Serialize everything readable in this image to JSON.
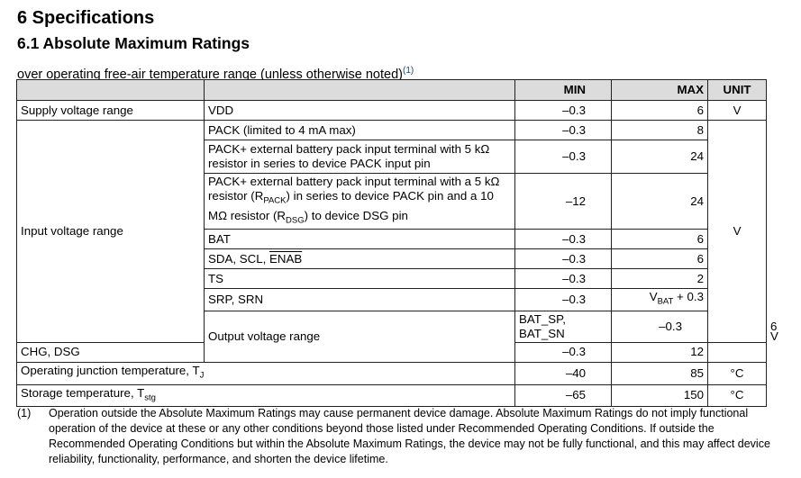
{
  "heading": "6 Specifications",
  "subheading": "6.1 Absolute Maximum Ratings",
  "condition": "over operating free-air temperature range (unless otherwise noted)",
  "condition_ref": "(1)",
  "columns": {
    "min": "MIN",
    "max": "MAX",
    "unit": "UNIT"
  },
  "rows": {
    "supply": {
      "param": "Supply voltage range",
      "pin": "VDD",
      "min": "–0.3",
      "max": "6",
      "unit": "V"
    },
    "input": {
      "param": "Input voltage range",
      "unit": "V",
      "pack": {
        "pin": "PACK (limited to 4 mA max)",
        "min": "–0.3",
        "max": "8"
      },
      "pack5k": {
        "pin": "PACK+ external battery pack input terminal with 5 kΩ resistor in series to device PACK input pin",
        "min": "–0.3",
        "max": "24"
      },
      "pack10m": {
        "pin_a": "PACK+ external battery pack input terminal with a 5 kΩ resistor (R",
        "pin_sub1": "PACK",
        "pin_b": ") in series to device PACK pin and a 10 MΩ resistor (R",
        "pin_sub2": "DSG",
        "pin_c": ") to device DSG pin",
        "min": "–12",
        "max": "24"
      },
      "bat": {
        "pin": "BAT",
        "min": "–0.3",
        "max": "6"
      },
      "sda": {
        "pin_a": "SDA, SCL, ",
        "pin_b": "ENAB",
        "min": "–0.3",
        "max": "6"
      },
      "ts": {
        "pin": "TS",
        "min": "–0.3",
        "max": "2"
      },
      "srp": {
        "pin": "SRP, SRN",
        "min": "–0.3",
        "max_a": "V",
        "max_sub": "BAT",
        "max_b": " + 0.3"
      }
    },
    "output": {
      "param": "Output voltage range",
      "unit": "V",
      "batsp": {
        "pin": "BAT_SP, BAT_SN",
        "min": "–0.3",
        "max": "6"
      },
      "chg": {
        "pin": "CHG, DSG",
        "min": "–0.3",
        "max": "12"
      }
    },
    "tj": {
      "param_a": "Operating junction temperature, T",
      "param_sub": "J",
      "min": "–40",
      "max": "85",
      "unit": "°C"
    },
    "tstg": {
      "param_a": "Storage temperature, T",
      "param_sub": "stg",
      "min": "–65",
      "max": "150",
      "unit": "°C"
    }
  },
  "footnote": {
    "label": "(1)",
    "text": "Operation outside the Absolute Maximum Ratings may cause permanent device damage. Absolute Maximum Ratings do not imply functional operation of the device at these or any other conditions beyond those listed under Recommended Operating Conditions. If outside the Recommended Operating Conditions but within the Absolute Maximum Ratings, the device may not be fully functional, and this may affect device reliability, functionality, performance, and shorten the device lifetime."
  }
}
